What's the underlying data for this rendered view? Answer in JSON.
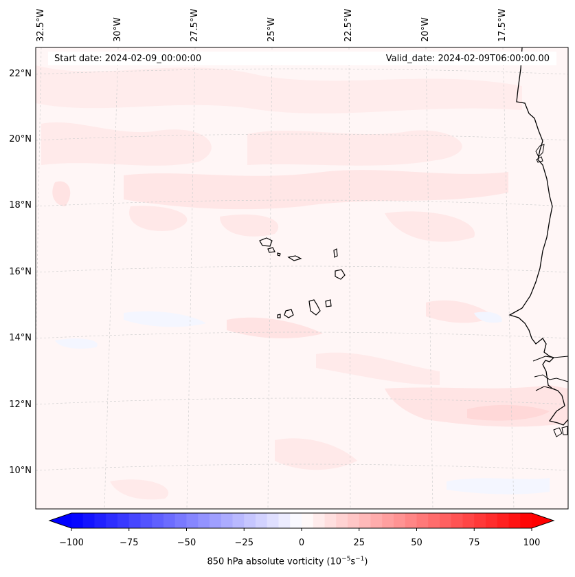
{
  "header": {
    "start_date": "Start date: 2024-02-09_00:00:00",
    "valid_date": "Valid_date: 2024-02-09T06:00:00.00"
  },
  "longitude_labels": [
    "32.5°W",
    "30°W",
    "27.5°W",
    "25°W",
    "22.5°W",
    "20°W",
    "17.5°W"
  ],
  "latitude_labels": [
    "22°N",
    "20°N",
    "18°N",
    "16°N",
    "14°N",
    "12°N",
    "10°N"
  ],
  "colorbar": {
    "ticks": [
      "−100",
      "−75",
      "−50",
      "−25",
      "0",
      "25",
      "50",
      "75",
      "100"
    ],
    "range": [
      -100,
      100
    ],
    "levels": 41,
    "label_text": "850 hPa absolute vorticity (10",
    "label_exp1": "−5",
    "label_mid": "s",
    "label_exp2": "−1",
    "label_close": ")",
    "color_min": "#0000ff",
    "color_mid": "#ffffff",
    "color_max": "#ff0000"
  },
  "colors": {
    "background_field": "#fff5f5",
    "vorticity_weak": "#ffe9e9",
    "vorticity_moderate": "#ffdcdc",
    "negative_weak": "#f3f6ff",
    "coastline": "#000000",
    "gridline": "#c8c8c8"
  }
}
